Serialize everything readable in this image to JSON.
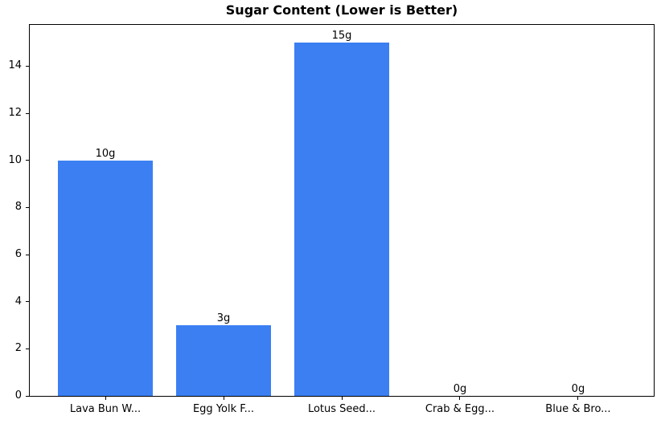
{
  "chart_data": {
    "type": "bar",
    "title": "Sugar Content (Lower is Better)",
    "categories": [
      "Lava Bun W...",
      "Egg Yolk F...",
      "Lotus Seed...",
      "Crab & Egg...",
      "Blue & Bro..."
    ],
    "values": [
      10,
      3,
      15,
      0,
      0
    ],
    "value_labels": [
      "10g",
      "3g",
      "15g",
      "0g",
      "0g"
    ],
    "xlabel": "",
    "ylabel": "",
    "yticks": [
      0,
      2,
      4,
      6,
      8,
      10,
      12,
      14
    ],
    "ylim": [
      0,
      15.75
    ],
    "xlim": [
      -0.64,
      4.64
    ],
    "bar_width": 0.8,
    "bar_color": "#3b7ff2",
    "axis_color": "#000000",
    "background_color": "#ffffff",
    "grid": false,
    "legend_position": "none"
  }
}
